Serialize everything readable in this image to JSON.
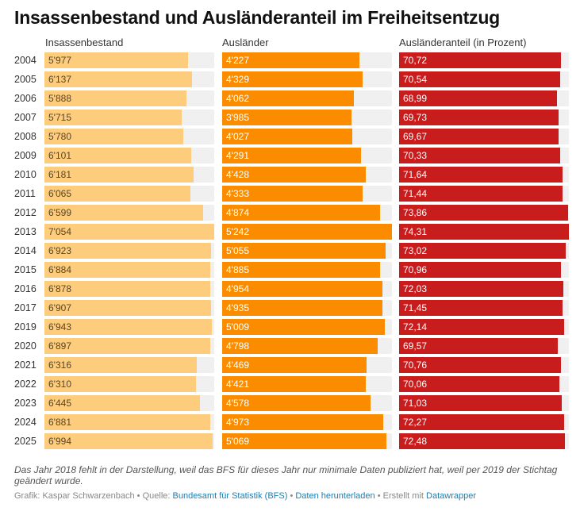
{
  "title": "Insassenbestand und Ausländeranteil im Freiheitsentzug",
  "chart_data": {
    "type": "table",
    "columns": [
      {
        "key": "insassen",
        "label": "Insassenbestand",
        "max": 7054,
        "color": "#fdcd7d",
        "labels": [
          "5'977",
          "6'137",
          "5'888",
          "5'715",
          "5'780",
          "6'101",
          "6'181",
          "6'065",
          "6'599",
          "7'054",
          "6'923",
          "6'884",
          "6'878",
          "6'907",
          "6'943",
          "6'897",
          "6'316",
          "6'310",
          "6'445",
          "6'881",
          "6'994"
        ],
        "values": [
          5977,
          6137,
          5888,
          5715,
          5780,
          6101,
          6181,
          6065,
          6599,
          7054,
          6923,
          6884,
          6878,
          6907,
          6943,
          6897,
          6316,
          6310,
          6445,
          6881,
          6994
        ]
      },
      {
        "key": "auslaender",
        "label": "Ausländer",
        "max": 5242,
        "color": "#fb8c00",
        "labels": [
          "4'227",
          "4'329",
          "4'062",
          "3'985",
          "4'027",
          "4'291",
          "4'428",
          "4'333",
          "4'874",
          "5'242",
          "5'055",
          "4'885",
          "4'954",
          "4'935",
          "5'009",
          "4'798",
          "4'469",
          "4'421",
          "4'578",
          "4'973",
          "5'069"
        ],
        "values": [
          4227,
          4329,
          4062,
          3985,
          4027,
          4291,
          4428,
          4333,
          4874,
          5242,
          5055,
          4885,
          4954,
          4935,
          5009,
          4798,
          4469,
          4421,
          4578,
          4973,
          5069
        ]
      },
      {
        "key": "anteil",
        "label": "Ausländeranteil (in Prozent)",
        "max": 74.31,
        "color": "#c91c1c",
        "labels": [
          "70,72",
          "70,54",
          "68,99",
          "69,73",
          "69,67",
          "70,33",
          "71,64",
          "71,44",
          "73,86",
          "74,31",
          "73,02",
          "70,96",
          "72,03",
          "71,45",
          "72,14",
          "69,57",
          "70,76",
          "70,06",
          "71,03",
          "72,27",
          "72,48"
        ],
        "values": [
          70.72,
          70.54,
          68.99,
          69.73,
          69.67,
          70.33,
          71.64,
          71.44,
          73.86,
          74.31,
          73.02,
          70.96,
          72.03,
          71.45,
          72.14,
          69.57,
          70.76,
          70.06,
          71.03,
          72.27,
          72.48
        ]
      }
    ],
    "years": [
      "2004",
      "2005",
      "2006",
      "2007",
      "2008",
      "2009",
      "2010",
      "2011",
      "2012",
      "2013",
      "2014",
      "2015",
      "2016",
      "2017",
      "2019",
      "2020",
      "2021",
      "2022",
      "2023",
      "2024",
      "2025"
    ]
  },
  "note": "Das Jahr 2018 fehlt in der Darstellung, weil das BFS für dieses Jahr nur minimale Daten publiziert hat, weil per 2019 der Stichtag geändert wurde.",
  "footer": {
    "prefix": "Grafik: Kaspar Schwarzenbach • Quelle: ",
    "source": "Bundesamt für Statistik (BFS)",
    "sep": " • ",
    "download": "Daten herunterladen",
    "made": " • Erstellt mit ",
    "tool": "Datawrapper"
  }
}
